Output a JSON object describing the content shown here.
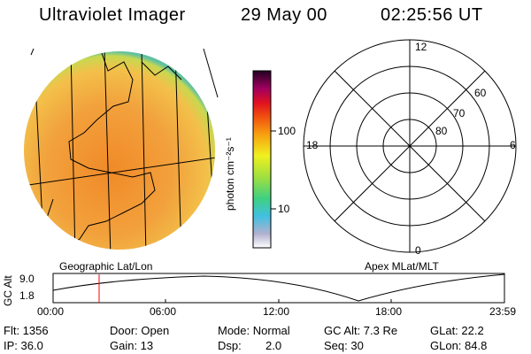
{
  "header": {
    "instrument": "Ultraviolet Imager",
    "date": "29 May 00",
    "time": "02:25:56 UT"
  },
  "colorbar": {
    "unit_label": "photon cm⁻²s⁻¹",
    "ticks": [
      "100",
      "10"
    ]
  },
  "polar_plot": {
    "mlt_labels": [
      "12",
      "18",
      "6",
      "0"
    ],
    "mlat_labels": [
      "60",
      "70",
      "80"
    ],
    "title": "Apex MLat/MLT"
  },
  "image_panel": {
    "title": "Geographic Lat/Lon"
  },
  "altitude_plot": {
    "ylabel": "GC Alt",
    "y_ticks": [
      "9.0",
      "1.8"
    ],
    "x_ticks": [
      "00:00",
      "06:00",
      "12:00",
      "18:00",
      "23:59"
    ]
  },
  "info": {
    "flt": "Flt: 1356",
    "ip": "IP: 36.0",
    "door": "Door: Open",
    "gain": "Gain: 13",
    "mode": "Mode: Normal",
    "dsp_label": "Dsp:",
    "dsp_value": "2.0",
    "gc_alt": "GC Alt: 7.3 Re",
    "seq": "Seq: 30",
    "glat": "GLat: 22.2",
    "glon": "GLon: 84.8"
  },
  "colors": {
    "disk_main": "#f2a640",
    "disk_edge": "#90d060",
    "marker": "#ff0000"
  }
}
